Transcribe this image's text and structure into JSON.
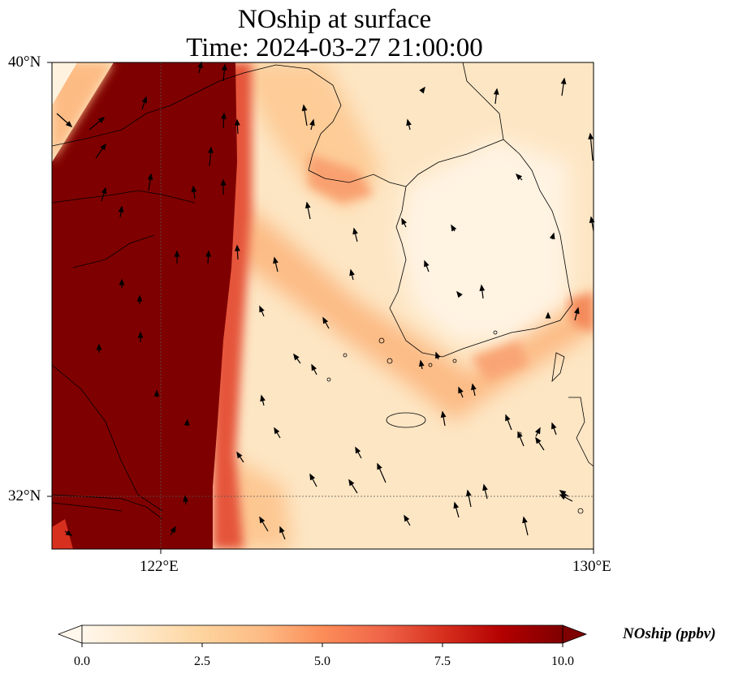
{
  "map": {
    "title_line1": "NOship at surface",
    "title_line2": "Time: 2024-03-27 21:00:00",
    "lat_labels": [
      "40°N",
      "32°N"
    ],
    "lon_labels": [
      "122°E",
      "130°E"
    ],
    "extent": {
      "lon_min": 120,
      "lon_max": 130,
      "lat_min": 31,
      "lat_max": 40
    },
    "gridlines": {
      "lon": 122,
      "lat": 32
    },
    "variable": "NOship",
    "units": "ppbv"
  },
  "colorbar": {
    "title": "NOship (ppbv)",
    "ticks": [
      "0.0",
      "2.5",
      "5.0",
      "7.5",
      "10.0"
    ],
    "min": 0,
    "max": 10,
    "colormap": [
      "#fff7ec",
      "#fee8c8",
      "#fdd49e",
      "#fdbb84",
      "#fc8d59",
      "#ef6548",
      "#d7301f",
      "#b30000",
      "#7f0000"
    ],
    "extend": "both"
  },
  "colors": {
    "high_plume": "#7f0000",
    "coastline": "#000000",
    "wind_vector": "#000000"
  }
}
